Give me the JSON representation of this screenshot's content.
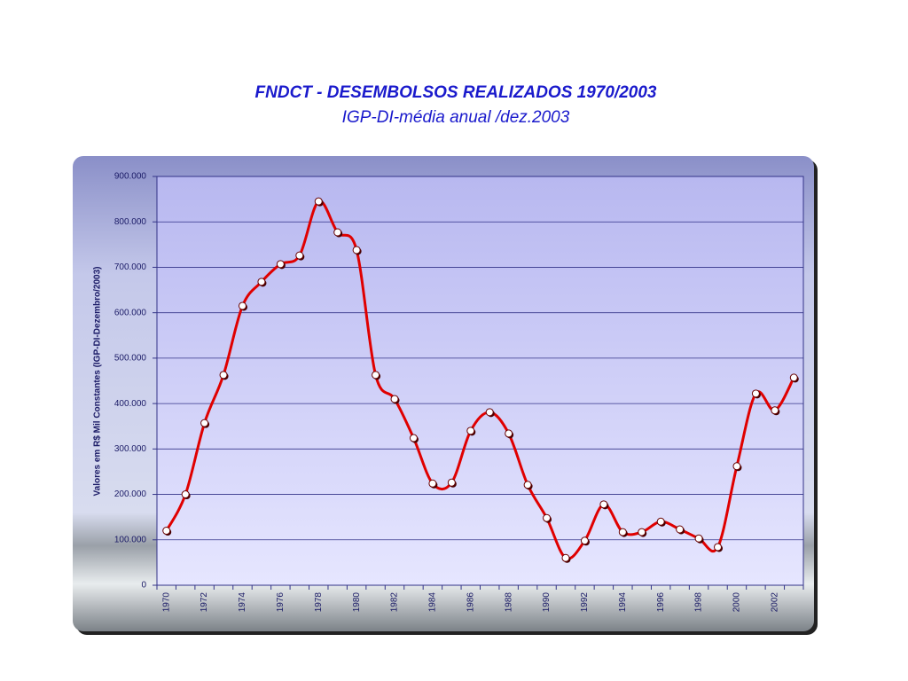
{
  "chart_data": {
    "type": "line",
    "title": "FNDCT - DESEMBOLSOS REALIZADOS 1970/2003",
    "subtitle": "IGP-DI-média anual /dez.2003",
    "y_label": "Valores em R$ Mil Constantes (IGP-DI-Dezembro/2003)",
    "categories": [
      "1970",
      null,
      "1972",
      null,
      "1974",
      null,
      "1976",
      null,
      "1978",
      null,
      "1980",
      null,
      "1982",
      null,
      "1984",
      null,
      "1986",
      null,
      "1988",
      null,
      "1990",
      null,
      "1992",
      null,
      "1994",
      null,
      "1996",
      null,
      "1998",
      null,
      "2000",
      null,
      "2002",
      null
    ],
    "values": [
      120000,
      200000,
      357000,
      463000,
      615000,
      668000,
      707000,
      726000,
      845000,
      777000,
      738000,
      463000,
      410000,
      324000,
      224000,
      226000,
      340000,
      381000,
      334000,
      221000,
      148000,
      60000,
      98000,
      178000,
      117000,
      117000,
      140000,
      123000,
      103000,
      84000,
      262000,
      422000,
      385000,
      457000
    ],
    "color": "#e00000",
    "ylim": [
      0,
      900000
    ],
    "yticks": [
      0,
      {
        "value": 100000,
        "label": "100.000"
      },
      {
        "value": 200000,
        "label": "200.000"
      },
      {
        "value": 300000,
        "label": "300.000"
      },
      {
        "value": 400000,
        "label": "400.000"
      },
      {
        "value": 500000,
        "label": "500.000"
      },
      {
        "value": 600000,
        "label": "600.000"
      },
      {
        "value": 700000,
        "label": "700.000"
      },
      {
        "value": 800000,
        "label": "800.000"
      },
      {
        "value": 900000,
        "label": "900.000"
      }
    ],
    "grid": true
  }
}
